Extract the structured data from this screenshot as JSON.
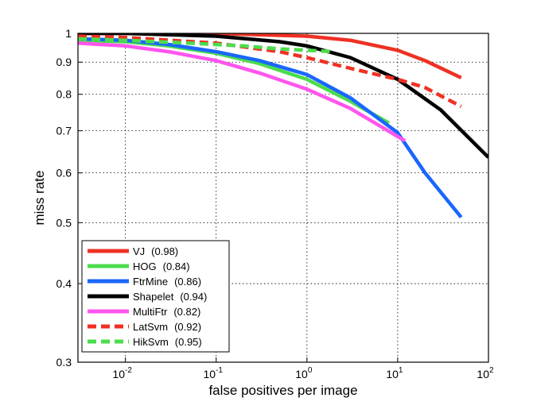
{
  "chart_data": {
    "type": "line",
    "xlabel": "false positives per image",
    "ylabel": "miss rate",
    "x_scale": "log",
    "y_scale": "log",
    "xlim": [
      0.003,
      100
    ],
    "ylim": [
      0.3,
      1
    ],
    "x_ticks": [
      {
        "value": 0.01,
        "base": "10",
        "exp": "-2"
      },
      {
        "value": 0.1,
        "base": "10",
        "exp": "-1"
      },
      {
        "value": 1,
        "base": "10",
        "exp": "0"
      },
      {
        "value": 10,
        "base": "10",
        "exp": "1"
      },
      {
        "value": 100,
        "base": "10",
        "exp": "2"
      }
    ],
    "y_ticks": [
      {
        "value": 0.3,
        "label": "0.3"
      },
      {
        "value": 0.4,
        "label": "0.4"
      },
      {
        "value": 0.5,
        "label": "0.5"
      },
      {
        "value": 0.6,
        "label": "0.6"
      },
      {
        "value": 0.7,
        "label": "0.7"
      },
      {
        "value": 0.8,
        "label": "0.8"
      },
      {
        "value": 0.9,
        "label": "0.9"
      },
      {
        "value": 1,
        "label": "1"
      }
    ],
    "grid": true,
    "legend_position": "bottom-left",
    "series": [
      {
        "name": "VJ",
        "score": "(0.98)",
        "color": "#ee3124",
        "dash": "solid",
        "x": [
          0.003,
          0.01,
          0.05,
          0.1,
          0.3,
          1,
          3,
          10,
          20,
          50
        ],
        "y": [
          1.0,
          1.0,
          1.0,
          1.0,
          0.995,
          0.99,
          0.975,
          0.94,
          0.905,
          0.85
        ]
      },
      {
        "name": "HOG",
        "score": "(0.84)",
        "color": "#4cdc4c",
        "dash": "solid",
        "x": [
          0.003,
          0.01,
          0.03,
          0.1,
          0.3,
          1,
          3,
          8
        ],
        "y": [
          0.975,
          0.97,
          0.955,
          0.93,
          0.895,
          0.845,
          0.78,
          0.72
        ]
      },
      {
        "name": "FtrMine",
        "score": "(0.86)",
        "color": "#1a66ff",
        "dash": "solid",
        "x": [
          0.003,
          0.01,
          0.03,
          0.1,
          0.3,
          1,
          3,
          10,
          20,
          50
        ],
        "y": [
          0.98,
          0.975,
          0.96,
          0.935,
          0.905,
          0.86,
          0.79,
          0.695,
          0.6,
          0.51
        ]
      },
      {
        "name": "Shapelet",
        "score": "(0.94)",
        "color": "#000000",
        "dash": "solid",
        "x": [
          0.003,
          0.01,
          0.1,
          0.5,
          1,
          3,
          10,
          30,
          100
        ],
        "y": [
          1.0,
          1.0,
          0.99,
          0.97,
          0.955,
          0.915,
          0.845,
          0.755,
          0.635
        ]
      },
      {
        "name": "MultiFtr",
        "score": "(0.82)",
        "color": "#ff55ee",
        "dash": "solid",
        "x": [
          0.003,
          0.01,
          0.03,
          0.1,
          0.3,
          1,
          3,
          12
        ],
        "y": [
          0.965,
          0.955,
          0.935,
          0.905,
          0.865,
          0.815,
          0.76,
          0.675
        ]
      },
      {
        "name": "LatSvm",
        "score": "(0.92)",
        "color": "#ee3124",
        "dash": "dashed",
        "x": [
          0.003,
          0.01,
          0.1,
          0.5,
          1,
          3,
          10,
          20,
          50
        ],
        "y": [
          0.99,
          0.985,
          0.965,
          0.935,
          0.915,
          0.88,
          0.845,
          0.82,
          0.765
        ]
      },
      {
        "name": "HikSvm",
        "score": "(0.95)",
        "color": "#4cdc4c",
        "dash": "dashed",
        "x": [
          0.003,
          0.01,
          0.05,
          0.2,
          0.5,
          1,
          2
        ],
        "y": [
          0.98,
          0.975,
          0.965,
          0.955,
          0.945,
          0.94,
          0.935
        ]
      }
    ]
  }
}
